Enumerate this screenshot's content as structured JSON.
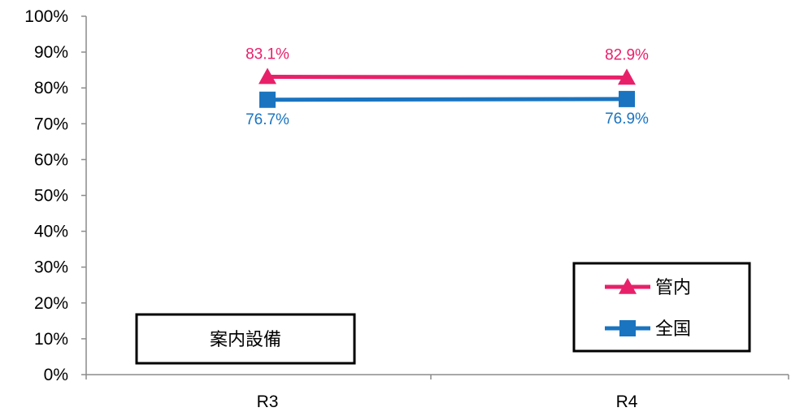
{
  "chart_data": {
    "type": "line",
    "categories": [
      "R3",
      "R4"
    ],
    "ylim": [
      0,
      1
    ],
    "y_ticks": [
      "0%",
      "10%",
      "20%",
      "30%",
      "40%",
      "50%",
      "60%",
      "70%",
      "80%",
      "90%",
      "100%"
    ],
    "grid": false,
    "legend_position": "bottom-right",
    "annotation": "案内設備",
    "series": [
      {
        "name": "管内",
        "values": [
          0.831,
          0.829
        ],
        "labels": [
          "83.1%",
          "82.9%"
        ],
        "color": "#e8206a",
        "marker": "triangle",
        "label_position": "above"
      },
      {
        "name": "全国",
        "values": [
          0.767,
          0.769
        ],
        "labels": [
          "76.7%",
          "76.9%"
        ],
        "color": "#1a74c0",
        "marker": "square",
        "label_position": "below"
      }
    ]
  }
}
